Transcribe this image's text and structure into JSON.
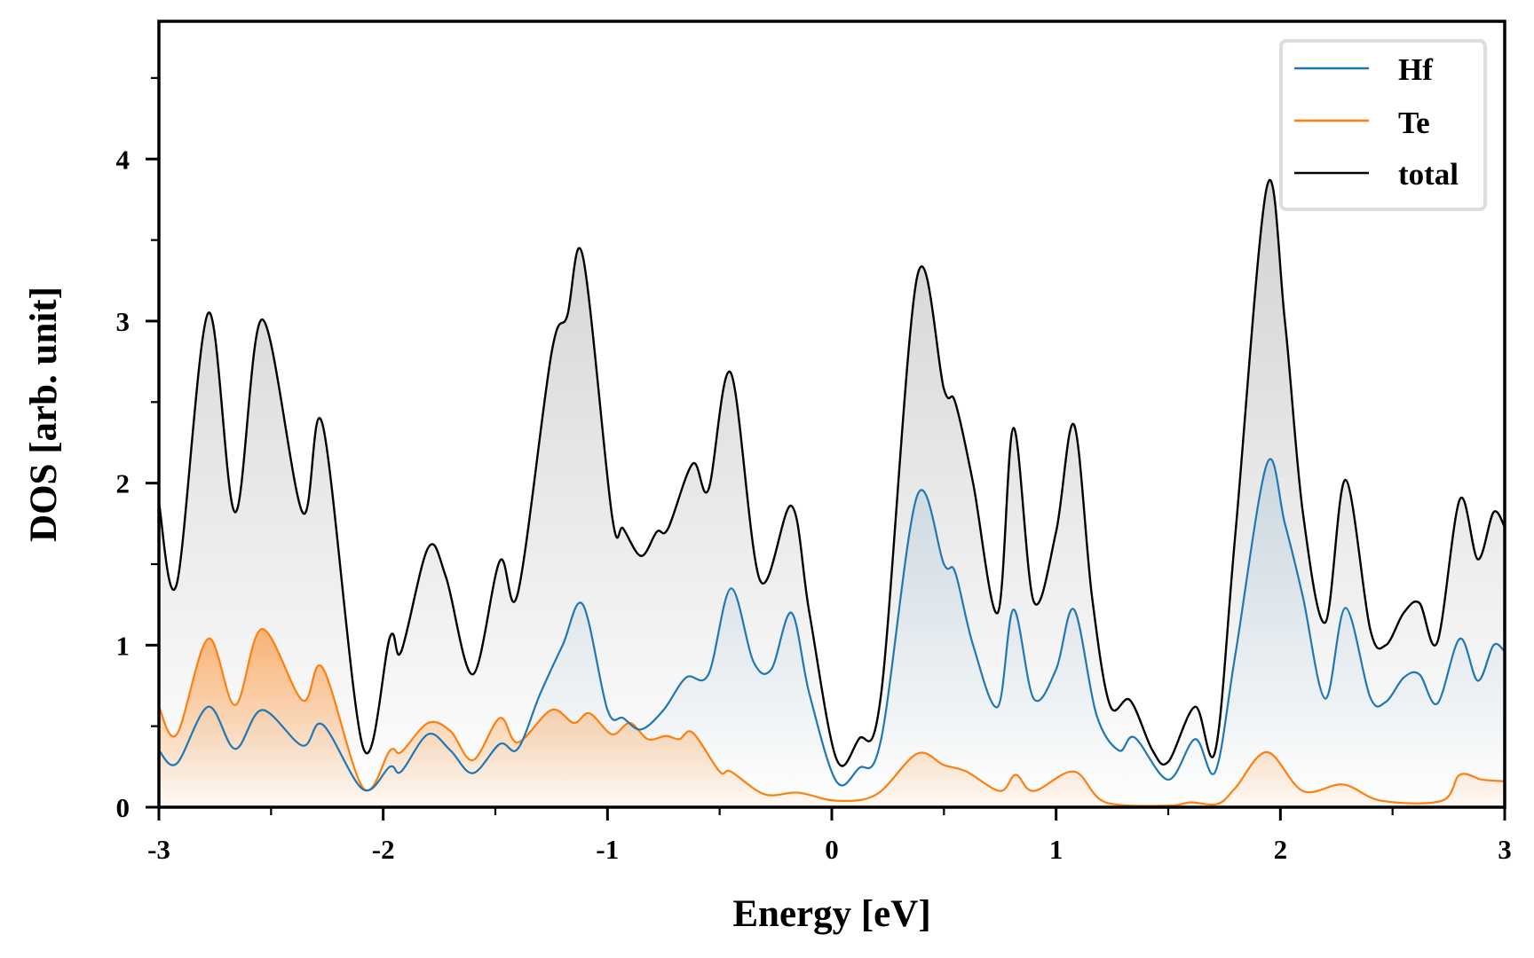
{
  "chart_data": {
    "type": "line",
    "title": "",
    "xlabel": "Energy [eV]",
    "ylabel": "DOS [arb. unit]",
    "xlim": [
      -3,
      3
    ],
    "ylim": [
      0,
      4.85
    ],
    "grid": false,
    "legend_position": "top-right",
    "xticks": [
      "-3",
      "-2",
      "-1",
      "0",
      "1",
      "2",
      "3"
    ],
    "xtick_values": [
      -3,
      -2,
      -1,
      0,
      1,
      2,
      3
    ],
    "xminor_values": [
      -2.5,
      -1.5,
      -0.5,
      0.5,
      1.5,
      2.5
    ],
    "yticks": [
      "0",
      "1",
      "2",
      "3",
      "4"
    ],
    "ytick_values": [
      0,
      1,
      2,
      3,
      4
    ],
    "yminor_values": [
      0.5,
      1.5,
      2.5,
      3.5,
      4.5
    ],
    "series": [
      {
        "name": "Hf",
        "color": "#1f77b4",
        "fill": "area-gradient",
        "x": [
          -3.0,
          -2.92,
          -2.78,
          -2.66,
          -2.54,
          -2.36,
          -2.27,
          -2.09,
          -1.97,
          -1.92,
          -1.8,
          -1.7,
          -1.6,
          -1.48,
          -1.4,
          -1.3,
          -1.2,
          -1.11,
          -1.0,
          -0.93,
          -0.85,
          -0.75,
          -0.65,
          -0.55,
          -0.45,
          -0.35,
          -0.27,
          -0.18,
          -0.1,
          0.02,
          0.12,
          0.22,
          0.38,
          0.5,
          0.55,
          0.63,
          0.74,
          0.81,
          0.9,
          1.0,
          1.08,
          1.18,
          1.28,
          1.35,
          1.5,
          1.62,
          1.71,
          1.8,
          1.94,
          2.02,
          2.1,
          2.2,
          2.29,
          2.4,
          2.47,
          2.55,
          2.62,
          2.7,
          2.8,
          2.88,
          2.95,
          3.0
        ],
        "y": [
          0.35,
          0.27,
          0.62,
          0.36,
          0.6,
          0.38,
          0.51,
          0.11,
          0.25,
          0.22,
          0.45,
          0.35,
          0.21,
          0.39,
          0.36,
          0.7,
          1.0,
          1.25,
          0.6,
          0.55,
          0.48,
          0.6,
          0.8,
          0.82,
          1.35,
          0.9,
          0.85,
          1.2,
          0.7,
          0.16,
          0.24,
          0.42,
          1.92,
          1.5,
          1.45,
          1.0,
          0.62,
          1.22,
          0.67,
          0.85,
          1.22,
          0.57,
          0.35,
          0.43,
          0.17,
          0.42,
          0.22,
          0.95,
          2.12,
          1.75,
          1.3,
          0.67,
          1.23,
          0.68,
          0.65,
          0.8,
          0.82,
          0.64,
          1.04,
          0.78,
          1.0,
          0.96
        ]
      },
      {
        "name": "Te",
        "color": "#ff7f0e",
        "fill": "area-gradient",
        "x": [
          -3.0,
          -2.92,
          -2.78,
          -2.66,
          -2.54,
          -2.36,
          -2.27,
          -2.09,
          -1.97,
          -1.92,
          -1.8,
          -1.7,
          -1.6,
          -1.48,
          -1.4,
          -1.25,
          -1.15,
          -1.08,
          -0.98,
          -0.9,
          -0.82,
          -0.74,
          -0.68,
          -0.62,
          -0.5,
          -0.45,
          -0.3,
          -0.15,
          0.02,
          0.2,
          0.38,
          0.5,
          0.6,
          0.75,
          0.82,
          0.9,
          1.08,
          1.22,
          1.5,
          1.6,
          1.72,
          1.8,
          1.94,
          2.1,
          2.28,
          2.45,
          2.72,
          2.8,
          2.9,
          3.0
        ],
        "y": [
          0.62,
          0.45,
          1.04,
          0.63,
          1.1,
          0.66,
          0.86,
          0.12,
          0.35,
          0.34,
          0.52,
          0.47,
          0.29,
          0.55,
          0.4,
          0.6,
          0.52,
          0.58,
          0.45,
          0.52,
          0.42,
          0.44,
          0.42,
          0.46,
          0.22,
          0.22,
          0.08,
          0.09,
          0.04,
          0.08,
          0.33,
          0.26,
          0.22,
          0.1,
          0.2,
          0.1,
          0.22,
          0.03,
          0.01,
          0.03,
          0.02,
          0.12,
          0.34,
          0.1,
          0.14,
          0.04,
          0.04,
          0.2,
          0.17,
          0.16
        ]
      },
      {
        "name": "total",
        "color": "#000000",
        "fill": "area-gradient",
        "x": [
          -3.0,
          -2.92,
          -2.78,
          -2.66,
          -2.54,
          -2.36,
          -2.27,
          -2.09,
          -1.97,
          -1.92,
          -1.8,
          -1.72,
          -1.6,
          -1.48,
          -1.4,
          -1.25,
          -1.18,
          -1.11,
          -0.98,
          -0.93,
          -0.85,
          -0.78,
          -0.73,
          -0.62,
          -0.55,
          -0.45,
          -0.32,
          -0.18,
          -0.1,
          0.02,
          0.12,
          0.22,
          0.38,
          0.5,
          0.55,
          0.63,
          0.74,
          0.81,
          0.9,
          1.0,
          1.08,
          1.16,
          1.24,
          1.33,
          1.43,
          1.5,
          1.62,
          1.71,
          1.8,
          1.94,
          2.02,
          2.1,
          2.2,
          2.29,
          2.4,
          2.47,
          2.55,
          2.62,
          2.7,
          2.8,
          2.88,
          2.95,
          3.0
        ],
        "y": [
          1.88,
          1.38,
          3.05,
          1.82,
          3.01,
          1.82,
          2.36,
          0.37,
          1.05,
          0.96,
          1.6,
          1.42,
          0.82,
          1.52,
          1.32,
          2.8,
          3.03,
          3.4,
          1.8,
          1.72,
          1.55,
          1.7,
          1.72,
          2.12,
          1.96,
          2.68,
          1.4,
          1.86,
          1.2,
          0.3,
          0.42,
          0.7,
          3.27,
          2.58,
          2.5,
          2.0,
          1.2,
          2.34,
          1.27,
          1.7,
          2.36,
          1.3,
          0.63,
          0.66,
          0.35,
          0.28,
          0.62,
          0.35,
          1.7,
          3.83,
          3.0,
          1.82,
          1.14,
          2.02,
          1.1,
          1.0,
          1.2,
          1.26,
          1.02,
          1.9,
          1.53,
          1.82,
          1.73
        ]
      }
    ]
  },
  "legend": {
    "items": [
      {
        "label": "Hf",
        "color": "#1f77b4"
      },
      {
        "label": "Te",
        "color": "#ff7f0e"
      },
      {
        "label": "total",
        "color": "#000000"
      }
    ]
  }
}
